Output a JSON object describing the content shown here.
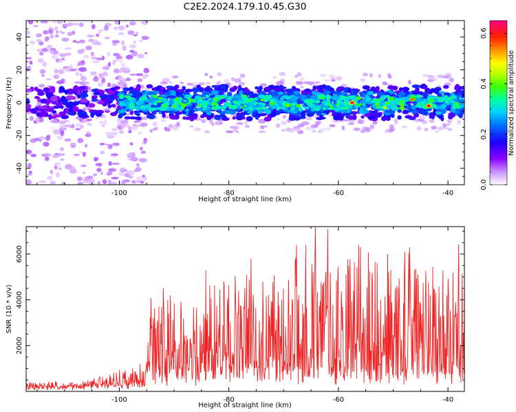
{
  "title": "C2E2.2024.179.10.45.G30",
  "chart_data": [
    {
      "type": "heatmap",
      "xlabel": "Height of straight line (km)",
      "ylabel": "Frequency (Hz)",
      "xlim": [
        -117,
        -37
      ],
      "ylim": [
        -50,
        50
      ],
      "x_ticks": [
        -100,
        -80,
        -60,
        -40
      ],
      "y_ticks": [
        -40,
        -20,
        0,
        20,
        40
      ],
      "colorbar": {
        "label": "Normalized spectral amplitude",
        "range": [
          0,
          0.65
        ],
        "ticks": [
          0.0,
          0.2,
          0.4,
          0.6
        ],
        "colormap": [
          "#ffffff",
          "#8b00ff",
          "#0000ff",
          "#00c0ff",
          "#00ff80",
          "#80ff00",
          "#ffff00",
          "#ff8000",
          "#ff0000",
          "#ff0080"
        ]
      },
      "description_of_signal": {
        "band_center_hz": 0,
        "band_halfwidth_hz": 8,
        "strong_region_km": [
          -100,
          -37
        ],
        "peak_amplitude": 0.62,
        "peaks": [
          {
            "x": -57.5,
            "y": 0,
            "amp": 0.62
          },
          {
            "x": -43.5,
            "y": -2,
            "amp": 0.6
          },
          {
            "x": -46.5,
            "y": 2,
            "amp": 0.55
          },
          {
            "x": -51.5,
            "y": -3,
            "amp": 0.45
          },
          {
            "x": -77,
            "y": -2,
            "amp": 0.35
          },
          {
            "x": -88,
            "y": 1,
            "amp": 0.3
          }
        ]
      }
    },
    {
      "type": "line",
      "xlabel": "Height of straight line (km)",
      "ylabel": "SNR (10 * v/v)",
      "xlim": [
        -117,
        -37
      ],
      "ylim": [
        0,
        7200
      ],
      "x_ticks": [
        -100,
        -80,
        -60,
        -40
      ],
      "y_ticks": [
        2000,
        4000,
        6000
      ],
      "line_color": "#ee2222",
      "segments": [
        {
          "x_range": [
            -117,
            -106
          ],
          "baseline": 120,
          "amplitude": 300
        },
        {
          "x_range": [
            -106,
            -95
          ],
          "baseline": 250,
          "amplitude": 900
        },
        {
          "x_range": [
            -95,
            -85
          ],
          "baseline": 600,
          "amplitude": 3500
        },
        {
          "x_range": [
            -85,
            -70
          ],
          "baseline": 800,
          "amplitude": 4500
        },
        {
          "x_range": [
            -70,
            -37
          ],
          "baseline": 700,
          "amplitude": 5500
        }
      ],
      "notable_peaks": [
        {
          "x": -64.2,
          "y": 7200
        },
        {
          "x": -62.0,
          "y": 7100
        },
        {
          "x": -66.0,
          "y": 6400
        },
        {
          "x": -47.0,
          "y": 6300
        },
        {
          "x": -56.0,
          "y": 6300
        },
        {
          "x": -76.0,
          "y": 5800
        },
        {
          "x": -92.0,
          "y": 4500
        }
      ]
    }
  ]
}
